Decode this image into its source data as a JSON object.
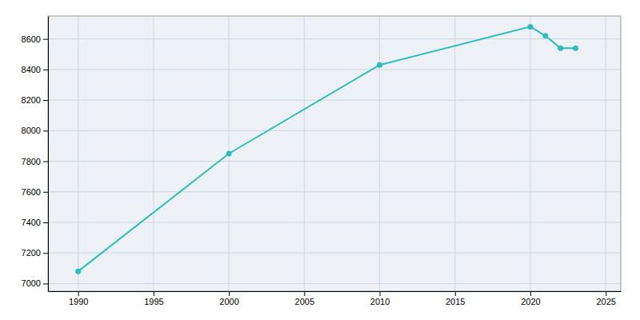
{
  "chart_data": {
    "type": "line",
    "x": [
      1990,
      2000,
      2010,
      2020,
      2021,
      2022,
      2023
    ],
    "values": [
      7080,
      7850,
      8430,
      8680,
      8620,
      8540,
      8540
    ],
    "color": "#2abfbf",
    "marker": "circle",
    "xlim": [
      1988,
      2026
    ],
    "ylim": [
      6950,
      8750
    ],
    "xticks": [
      1990,
      1995,
      2000,
      2005,
      2010,
      2015,
      2020,
      2025
    ],
    "yticks": [
      7000,
      7200,
      7400,
      7600,
      7800,
      8000,
      8200,
      8400,
      8600
    ],
    "grid": true
  }
}
